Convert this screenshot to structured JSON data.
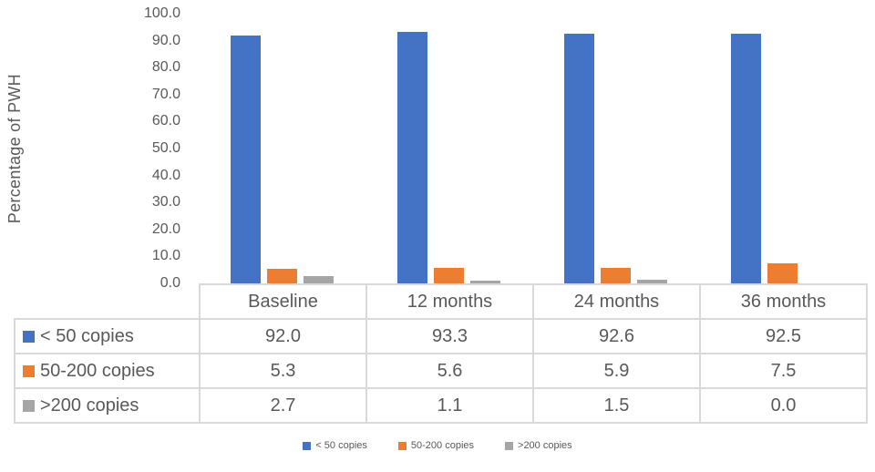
{
  "chart_data": {
    "type": "bar",
    "title": "",
    "xlabel": "",
    "ylabel": "Percentage of PWH",
    "ylim": [
      0,
      100
    ],
    "ytick_step": 10,
    "ytick_decimals": 1,
    "grid": false,
    "legend_position": "bottom",
    "shows_data_table": true,
    "categories": [
      "Baseline",
      "12 months",
      "24 months",
      "36 months"
    ],
    "series": [
      {
        "name": "< 50 copies",
        "color": "#4472C4",
        "values": [
          92.0,
          93.3,
          92.6,
          92.5
        ]
      },
      {
        "name": "50-200 copies",
        "color": "#ED7D31",
        "values": [
          5.3,
          5.6,
          5.9,
          7.5
        ]
      },
      {
        "name": ">200 copies",
        "color": "#A5A5A5",
        "values": [
          2.7,
          1.1,
          1.5,
          0.0
        ]
      }
    ],
    "text_color": "#595959",
    "table_border_color": "#D9D9D9"
  }
}
